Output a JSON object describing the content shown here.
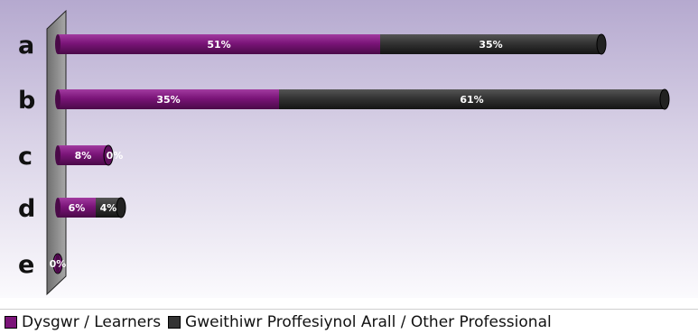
{
  "chart_data": {
    "type": "bar",
    "orientation": "horizontal",
    "stacked": true,
    "categories": [
      "a",
      "b",
      "c",
      "d",
      "e"
    ],
    "series": [
      {
        "name": "Dysgwr / Learners",
        "color": "#7b1479",
        "values": [
          51,
          35,
          8,
          6,
          0
        ],
        "labels": [
          "51%",
          "35%",
          "8%",
          "6%",
          "0%"
        ]
      },
      {
        "name": "Gweithiwr Proffesiynol Arall / Other Professional",
        "color": "#333333",
        "values": [
          35,
          61,
          0,
          4,
          0
        ],
        "labels": [
          "35%",
          "61%",
          "0%",
          "4%",
          ""
        ]
      }
    ],
    "xlim": [
      0,
      96
    ],
    "grid": false,
    "legend_position": "bottom"
  }
}
